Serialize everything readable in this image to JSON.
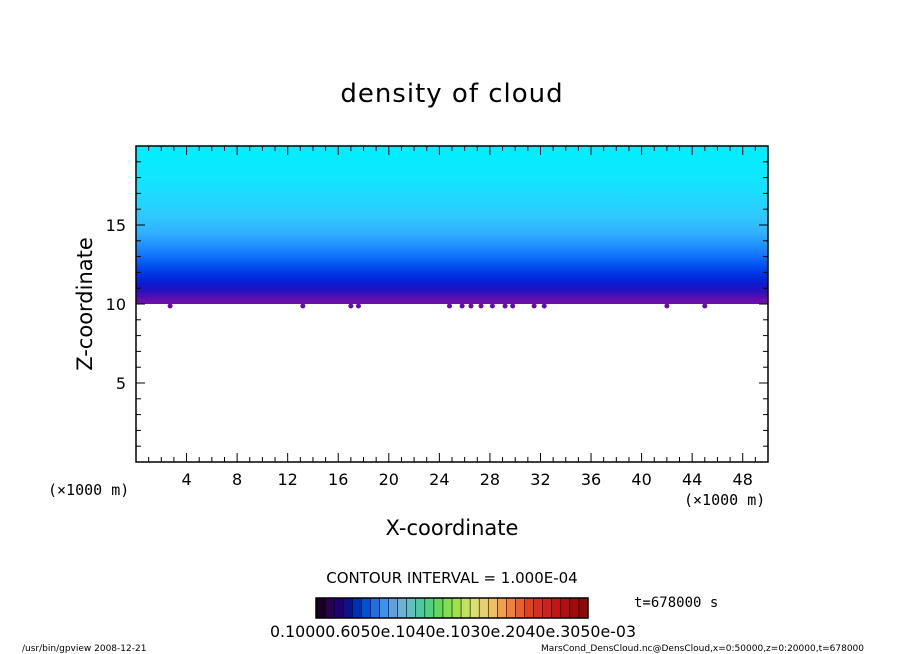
{
  "chart_data": {
    "type": "heatmap",
    "title": "density of cloud",
    "xlabel": "X-coordinate",
    "ylabel": "Z-coordinate",
    "x_unit": "(×1000 m)",
    "x_ticks": [
      4,
      8,
      12,
      16,
      20,
      24,
      28,
      32,
      36,
      40,
      44,
      48
    ],
    "y_ticks": [
      5,
      10,
      15
    ],
    "xlim": [
      0,
      50
    ],
    "ylim": [
      0,
      20
    ],
    "contour_interval": "CONTOUR INTERVAL = 1.000E-04",
    "time_label": "t=678000 s",
    "colorbar_labels": "0.10000.6050e.1040e.1030e.2040e.3050e-03",
    "colorbar_levels": [
      0.0001,
      0.0002,
      0.0003,
      0.0004,
      0.0005,
      0.0006,
      0.0007,
      0.0008,
      0.0009,
      0.001,
      0.0011,
      0.0012,
      0.0013,
      0.0014,
      0.0015,
      0.0016,
      0.0017,
      0.0018,
      0.0019,
      0.002,
      0.0021,
      0.0022,
      0.0023,
      0.0024,
      0.0025,
      0.0026,
      0.0027,
      0.0028,
      0.0029,
      0.003
    ],
    "colorbar_colors": [
      "#1a0020",
      "#2a0050",
      "#200070",
      "#10108a",
      "#0030b0",
      "#0050d0",
      "#2070e0",
      "#4090f0",
      "#60a0e0",
      "#70b0d0",
      "#60c0c0",
      "#50c8a0",
      "#50d080",
      "#60d860",
      "#80e050",
      "#a0e050",
      "#c0e060",
      "#d8e070",
      "#e8d070",
      "#f0c060",
      "#f0a050",
      "#f08040",
      "#e86030",
      "#e04020",
      "#d83020",
      "#d02020",
      "#c01818",
      "#b01010",
      "#a00c0c",
      "#900808"
    ],
    "cloud_zmin": 10,
    "cloud_zmax": 20,
    "cloud_colors_bottom_to_top": [
      "#7010a8",
      "#5a0fb0",
      "#2a10c0",
      "#0c1ad0",
      "#0030e0",
      "#0050f0",
      "#1070f8",
      "#2090ff",
      "#30b0ff",
      "#30c8ff",
      "#20d8ff",
      "#10e6ff",
      "#00eeff"
    ]
  },
  "footer": {
    "left": "/usr/bin/gpview   2008-12-21",
    "right": "MarsCond_DensCloud.nc@DensCloud,x=0:50000,z=0:20000,t=678000"
  }
}
